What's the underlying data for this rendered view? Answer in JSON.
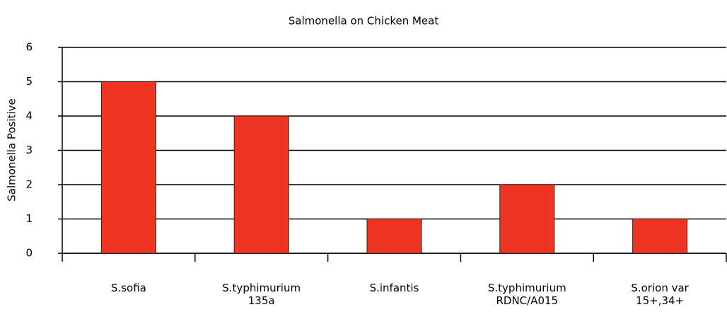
{
  "chart_data": {
    "type": "bar",
    "title": "Salmonella on Chicken Meat",
    "y_label": "Salmonella Positive",
    "categories": [
      "S.sofia",
      "S.typhimurium 135a",
      "S.infantis",
      "S.typhimurium RDNC/A015",
      "S.orion var 15+,34+"
    ],
    "values": [
      5,
      4,
      1,
      2,
      1
    ],
    "color": "#ee3524",
    "ylim": [
      0,
      6
    ],
    "yticks": [
      0,
      1,
      2,
      3,
      4,
      5,
      6
    ],
    "grid": true
  }
}
